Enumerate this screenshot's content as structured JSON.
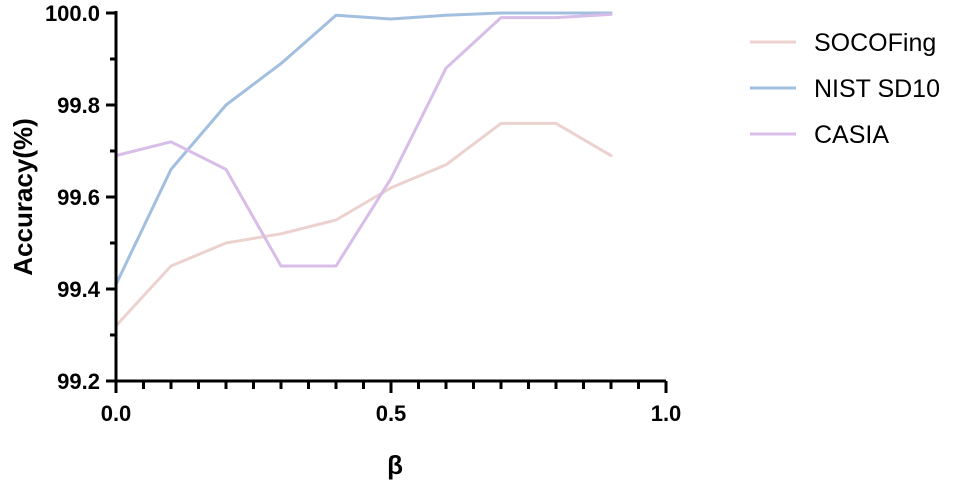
{
  "chart_data": {
    "type": "line",
    "xlabel": "β",
    "ylabel": "Accuracy(%)",
    "xlim": [
      0.0,
      1.0
    ],
    "ylim": [
      99.2,
      100.0
    ],
    "xticks": [
      "0.0",
      "0.5",
      "1.0"
    ],
    "yticks": [
      "99.2",
      "99.4",
      "99.6",
      "99.8",
      "100.0"
    ],
    "x": [
      0.0,
      0.1,
      0.2,
      0.3,
      0.4,
      0.5,
      0.6,
      0.7,
      0.8,
      0.9
    ],
    "series": [
      {
        "name": "SOCOFing",
        "color": "#ecd2cf",
        "values": [
          99.32,
          99.45,
          99.5,
          99.52,
          99.55,
          99.62,
          99.67,
          99.76,
          99.76,
          99.69
        ]
      },
      {
        "name": "NIST SD10",
        "color": "#a3bfdf",
        "values": [
          99.41,
          99.66,
          99.8,
          99.89,
          99.995,
          99.987,
          99.995,
          100.0,
          100.0,
          100.0
        ]
      },
      {
        "name": "CASIA",
        "color": "#d9bde9",
        "values": [
          99.69,
          99.72,
          99.66,
          99.45,
          99.45,
          99.64,
          99.88,
          99.99,
          99.99,
          99.997
        ]
      }
    ],
    "legend_position": "right",
    "grid": false
  }
}
